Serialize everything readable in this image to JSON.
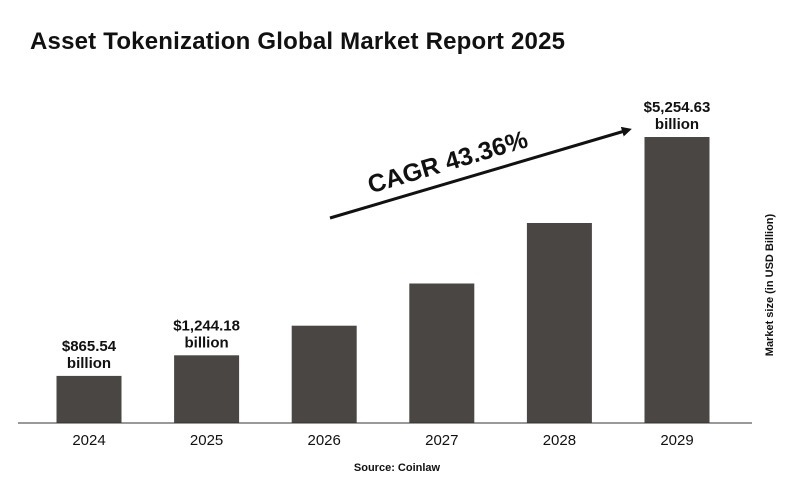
{
  "chart_data": {
    "type": "bar",
    "title": "Asset Tokenization Global Market Report 2025",
    "categories": [
      "2024",
      "2025",
      "2026",
      "2027",
      "2028",
      "2029"
    ],
    "values": [
      865.54,
      1244.18,
      1788,
      2563,
      3675,
      5254.63
    ],
    "data_labels": [
      {
        "index": 0,
        "value": "$865.54",
        "unit": "billion"
      },
      {
        "index": 1,
        "value": "$1,244.18",
        "unit": "billion"
      },
      {
        "index": 5,
        "value": "$5,254.63",
        "unit": "billion"
      }
    ],
    "xlabel": "",
    "ylabel": "Market size (in USD Billion)",
    "ylim": [
      0,
      5254.63
    ],
    "annotation": "CAGR 43.36%",
    "source": "Source: Coinlaw",
    "colors": {
      "bar": "#4a4643",
      "text": "#111111",
      "axis": "#333333"
    }
  }
}
